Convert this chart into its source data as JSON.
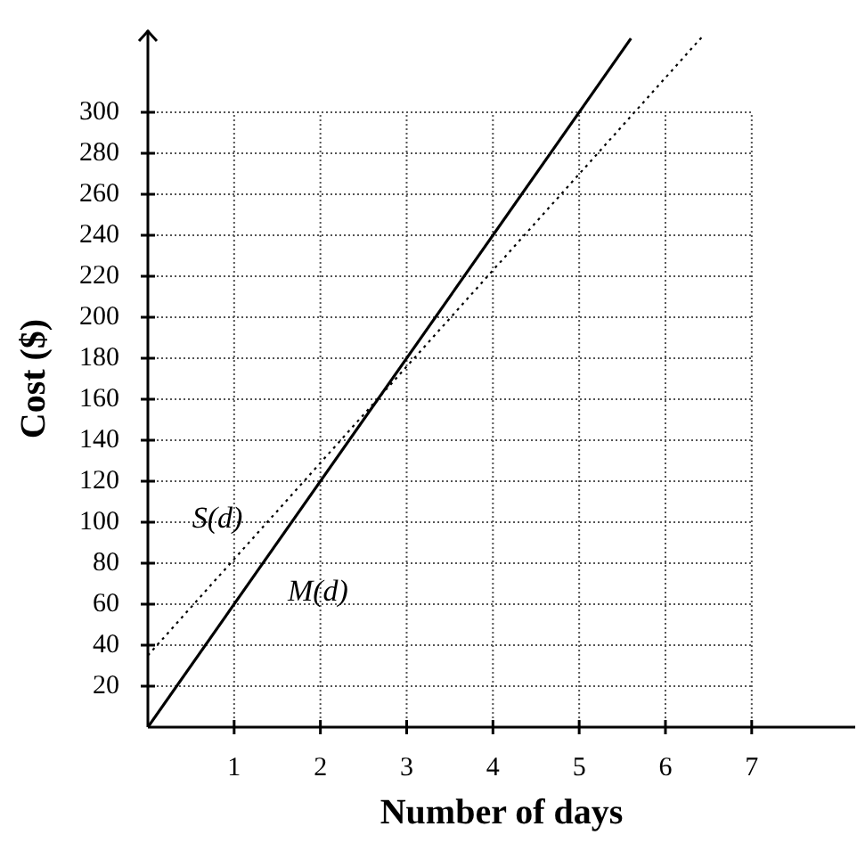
{
  "chart_data": {
    "type": "line",
    "xlabel": "Number of days",
    "ylabel": "Cost ($)",
    "series": [
      {
        "name": "M(d)",
        "color": "#000000",
        "line_style": "solid",
        "x": [
          0,
          5.6
        ],
        "values": [
          0,
          336
        ]
      },
      {
        "name": "S(d)",
        "color": "#000000",
        "line_style": "dotted",
        "x": [
          0,
          6.45
        ],
        "values": [
          35,
          338
        ]
      }
    ],
    "xlim": [
      0,
      8.2
    ],
    "ylim": [
      0,
      340
    ],
    "xticks": [
      1,
      2,
      3,
      4,
      5,
      6,
      7
    ],
    "yticks": [
      20,
      40,
      60,
      80,
      100,
      120,
      140,
      160,
      180,
      200,
      220,
      240,
      260,
      280,
      300
    ],
    "grid": true,
    "legend": false,
    "marker": "none"
  }
}
